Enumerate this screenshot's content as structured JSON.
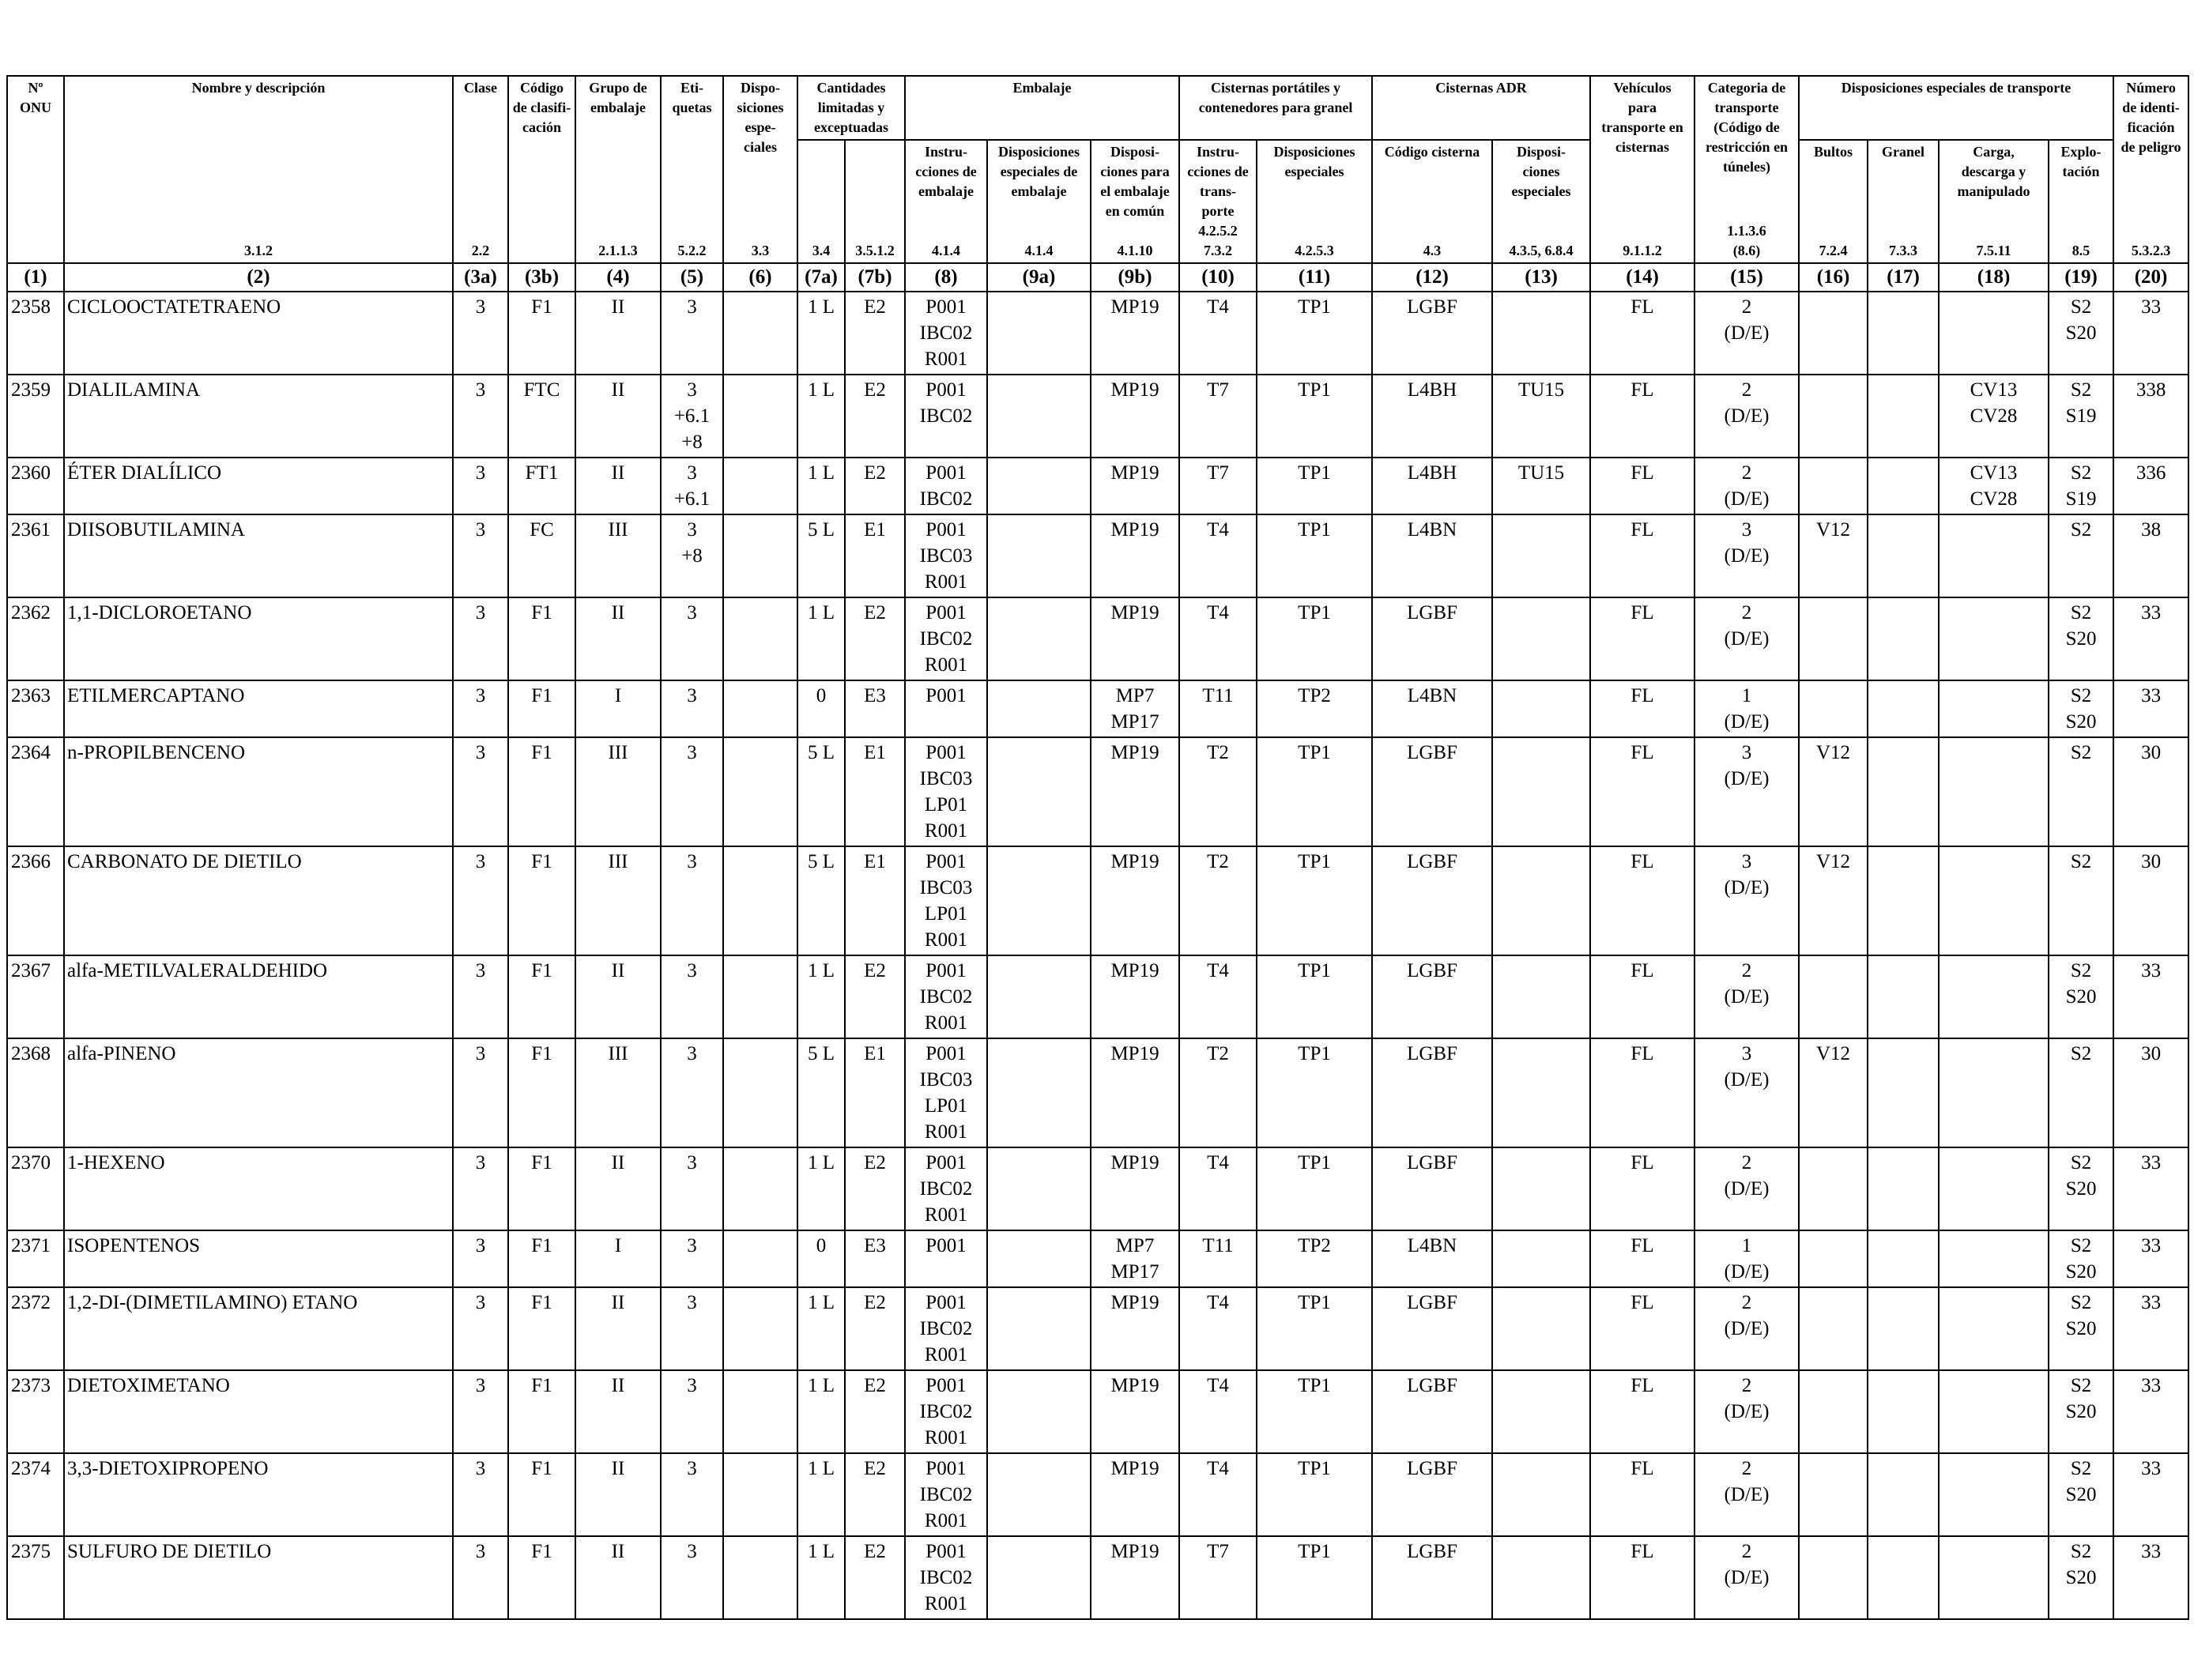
{
  "headers": {
    "onu": "Nº\nONU",
    "name": "Nombre y descripción",
    "clase": "Clase",
    "codigo": "Código\nde clasifi-\ncación",
    "grupo": "Grupo de\nembalaje",
    "etiquetas": "Eti-\nquetas",
    "disposiciones": "Dispo-\nsiciones\nespe-\nciales",
    "cantidades": "Cantidades\nlimitadas y\nexceptuadas",
    "embalaje": "Embalaje",
    "emb_instr": "Instru-\ncciones de\nembalaje",
    "emb_disp": "Disposiciones\nespeciales de\nembalaje",
    "emb_comun": "Disposi-\nciones para\nel embalaje\nen común",
    "cisternas_port": "Cisternas portátiles y\ncontenedores para granel",
    "cp_instr": "Instru-\ncciones de\ntrans-\nporte",
    "cp_disp": "Disposiciones\nespeciales",
    "cisternas_adr": "Cisternas ADR",
    "adr_codigo": "Código cisterna",
    "adr_disp": "Disposi-\nciones\nespeciales",
    "vehiculos": "Vehículos\npara\ntransporte en\ncisternas",
    "categoria": "Categoria de\ntransporte\n(Código de\nrestricción en\ntúneles)",
    "disp_transporte": "Disposiciones especiales de transporte",
    "bultos": "Bultos",
    "granel": "Granel",
    "carga": "Carga,\ndescarga y\nmanipulado",
    "explotacion": "Explo-\ntación",
    "numero_peligro": "Número\nde identi-\nficación\nde peligro"
  },
  "refs": [
    "",
    "3.1.2",
    "2.2",
    "",
    "2.1.1.3",
    "5.2.2",
    "3.3",
    "3.4",
    "3.5.1.2",
    "4.1.4",
    "4.1.4",
    "4.1.10",
    "4.2.5.2\n7.3.2",
    "4.2.5.3",
    "4.3",
    "4.3.5, 6.8.4",
    "9.1.1.2",
    "1.1.3.6\n(8.6)",
    "7.2.4",
    "7.3.3",
    "7.5.11",
    "8.5",
    "5.3.2.3"
  ],
  "col_numbers": [
    "(1)",
    "(2)",
    "(3a)",
    "(3b)",
    "(4)",
    "(5)",
    "(6)",
    "(7a)",
    "(7b)",
    "(8)",
    "(9a)",
    "(9b)",
    "(10)",
    "(11)",
    "(12)",
    "(13)",
    "(14)",
    "(15)",
    "(16)",
    "(17)",
    "(18)",
    "(19)",
    "(20)"
  ],
  "rows": [
    [
      "2358",
      "CICLOOCTATETRAENO",
      "3",
      "F1",
      "II",
      "3",
      "",
      "1 L",
      "E2",
      "P001\nIBC02\nR001",
      "",
      "MP19",
      "T4",
      "TP1",
      "LGBF",
      "",
      "FL",
      "2\n(D/E)",
      "",
      "",
      "",
      "S2\nS20",
      "33"
    ],
    [
      "2359",
      "DIALILAMINA",
      "3",
      "FTC",
      "II",
      "3\n+6.1\n+8",
      "",
      "1 L",
      "E2",
      "P001\nIBC02",
      "",
      "MP19",
      "T7",
      "TP1",
      "L4BH",
      "TU15",
      "FL",
      "2\n(D/E)",
      "",
      "",
      "CV13\nCV28",
      "S2\nS19",
      "338"
    ],
    [
      "2360",
      "ÉTER DIALÍLICO",
      "3",
      "FT1",
      "II",
      "3\n+6.1",
      "",
      "1 L",
      "E2",
      "P001\nIBC02",
      "",
      "MP19",
      "T7",
      "TP1",
      "L4BH",
      "TU15",
      "FL",
      "2\n(D/E)",
      "",
      "",
      "CV13\nCV28",
      "S2\nS19",
      "336"
    ],
    [
      "2361",
      "DIISOBUTILAMINA",
      "3",
      "FC",
      "III",
      "3\n+8",
      "",
      "5 L",
      "E1",
      "P001\nIBC03\nR001",
      "",
      "MP19",
      "T4",
      "TP1",
      "L4BN",
      "",
      "FL",
      "3\n(D/E)",
      "V12",
      "",
      "",
      "S2",
      "38"
    ],
    [
      "2362",
      "1,1-DICLOROETANO",
      "3",
      "F1",
      "II",
      "3",
      "",
      "1 L",
      "E2",
      "P001\nIBC02\nR001",
      "",
      "MP19",
      "T4",
      "TP1",
      "LGBF",
      "",
      "FL",
      "2\n(D/E)",
      "",
      "",
      "",
      "S2\nS20",
      "33"
    ],
    [
      "2363",
      "ETILMERCAPTANO",
      "3",
      "F1",
      "I",
      "3",
      "",
      "0",
      "E3",
      "P001",
      "",
      "MP7\nMP17",
      "T11",
      "TP2",
      "L4BN",
      "",
      "FL",
      "1\n(D/E)",
      "",
      "",
      "",
      "S2\nS20",
      "33"
    ],
    [
      "2364",
      "n-PROPILBENCENO",
      "3",
      "F1",
      "III",
      "3",
      "",
      "5 L",
      "E1",
      "P001\nIBC03\nLP01\nR001",
      "",
      "MP19",
      "T2",
      "TP1",
      "LGBF",
      "",
      "FL",
      "3\n(D/E)",
      "V12",
      "",
      "",
      "S2",
      "30"
    ],
    [
      "2366",
      "CARBONATO DE DIETILO",
      "3",
      "F1",
      "III",
      "3",
      "",
      "5 L",
      "E1",
      "P001\nIBC03\nLP01\nR001",
      "",
      "MP19",
      "T2",
      "TP1",
      "LGBF",
      "",
      "FL",
      "3\n(D/E)",
      "V12",
      "",
      "",
      "S2",
      "30"
    ],
    [
      "2367",
      "alfa-METILVALERALDEHIDO",
      "3",
      "F1",
      "II",
      "3",
      "",
      "1 L",
      "E2",
      "P001\nIBC02\nR001",
      "",
      "MP19",
      "T4",
      "TP1",
      "LGBF",
      "",
      "FL",
      "2\n(D/E)",
      "",
      "",
      "",
      "S2\nS20",
      "33"
    ],
    [
      "2368",
      "alfa-PINENO",
      "3",
      "F1",
      "III",
      "3",
      "",
      "5 L",
      "E1",
      "P001\nIBC03\nLP01\nR001",
      "",
      "MP19",
      "T2",
      "TP1",
      "LGBF",
      "",
      "FL",
      "3\n(D/E)",
      "V12",
      "",
      "",
      "S2",
      "30"
    ],
    [
      "2370",
      "1-HEXENO",
      "3",
      "F1",
      "II",
      "3",
      "",
      "1 L",
      "E2",
      "P001\nIBC02\nR001",
      "",
      "MP19",
      "T4",
      "TP1",
      "LGBF",
      "",
      "FL",
      "2\n(D/E)",
      "",
      "",
      "",
      "S2\nS20",
      "33"
    ],
    [
      "2371",
      "ISOPENTENOS",
      "3",
      "F1",
      "I",
      "3",
      "",
      "0",
      "E3",
      "P001",
      "",
      "MP7\nMP17",
      "T11",
      "TP2",
      "L4BN",
      "",
      "FL",
      "1\n(D/E)",
      "",
      "",
      "",
      "S2\nS20",
      "33"
    ],
    [
      "2372",
      "1,2-DI-(DIMETILAMINO) ETANO",
      "3",
      "F1",
      "II",
      "3",
      "",
      "1 L",
      "E2",
      "P001\nIBC02\nR001",
      "",
      "MP19",
      "T4",
      "TP1",
      "LGBF",
      "",
      "FL",
      "2\n(D/E)",
      "",
      "",
      "",
      "S2\nS20",
      "33"
    ],
    [
      "2373",
      "DIETOXIMETANO",
      "3",
      "F1",
      "II",
      "3",
      "",
      "1 L",
      "E2",
      "P001\nIBC02\nR001",
      "",
      "MP19",
      "T4",
      "TP1",
      "LGBF",
      "",
      "FL",
      "2\n(D/E)",
      "",
      "",
      "",
      "S2\nS20",
      "33"
    ],
    [
      "2374",
      "3,3-DIETOXIPROPENO",
      "3",
      "F1",
      "II",
      "3",
      "",
      "1 L",
      "E2",
      "P001\nIBC02\nR001",
      "",
      "MP19",
      "T4",
      "TP1",
      "LGBF",
      "",
      "FL",
      "2\n(D/E)",
      "",
      "",
      "",
      "S2\nS20",
      "33"
    ],
    [
      "2375",
      "SULFURO DE DIETILO",
      "3",
      "F1",
      "II",
      "3",
      "",
      "1 L",
      "E2",
      "P001\nIBC02\nR001",
      "",
      "MP19",
      "T7",
      "TP1",
      "LGBF",
      "",
      "FL",
      "2\n(D/E)",
      "",
      "",
      "",
      "S2\nS20",
      "33"
    ]
  ]
}
